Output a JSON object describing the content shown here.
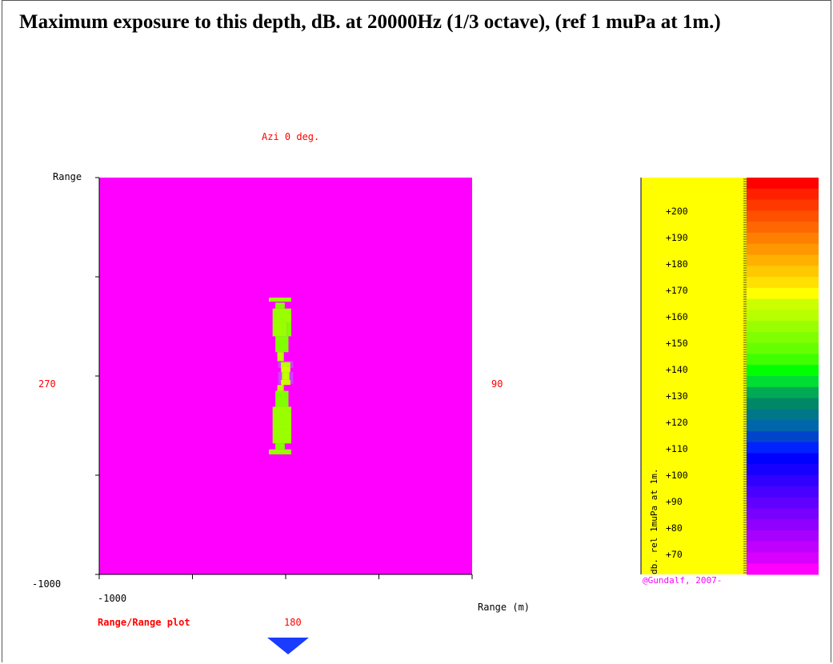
{
  "title": "Maximum exposure to this depth, dB. at 20000Hz (1/3 octave), (ref 1 muPa at 1m.)",
  "azimuth_label": "Azi 0 deg.",
  "bearing_labels": {
    "left": "270",
    "right": "90",
    "bottom": "180"
  },
  "plot_label": "Range/Range plot",
  "colors": {
    "background_level": "#ff00ff",
    "scale_panel": "#ffff00",
    "pointer": "#1a3cff"
  },
  "chart_data": {
    "type": "heatmap",
    "xlabel": "Range (m)",
    "ylabel": "Range",
    "x_tick_labels": [
      "-1000"
    ],
    "y_tick_labels": [
      "-1000"
    ],
    "background_value_db": 65,
    "cells": [
      {
        "x": [
          -90,
          30
        ],
        "y": [
          -375,
          -395
        ],
        "value": 152
      },
      {
        "x": [
          -55,
          -5
        ],
        "y": [
          -340,
          -370
        ],
        "value": 150
      },
      {
        "x": [
          -70,
          30
        ],
        "y": [
          -270,
          -340
        ],
        "value": 152
      },
      {
        "x": [
          -70,
          5
        ],
        "y": [
          -200,
          -270
        ],
        "value": 153
      },
      {
        "x": [
          5,
          30
        ],
        "y": [
          -200,
          -270
        ],
        "value": 148
      },
      {
        "x": [
          -55,
          15
        ],
        "y": [
          -120,
          -200
        ],
        "value": 150
      },
      {
        "x": [
          -45,
          -10
        ],
        "y": [
          -75,
          -120
        ],
        "value": 156
      },
      {
        "x": [
          -40,
          40
        ],
        "y": [
          -40,
          -75
        ],
        "value": 60
      },
      {
        "x": [
          -25,
          25
        ],
        "y": [
          -45,
          -70
        ],
        "value": 158
      },
      {
        "x": [
          -25,
          25
        ],
        "y": [
          -20,
          -45
        ],
        "value": 161
      },
      {
        "x": [
          -10,
          0
        ],
        "y": [
          -55,
          -20
        ],
        "value": 164
      },
      {
        "x": [
          -40,
          40
        ],
        "y": [
          -20,
          20
        ],
        "value": 60
      },
      {
        "x": [
          -20,
          20
        ],
        "y": [
          -20,
          20
        ],
        "value": 160
      },
      {
        "x": [
          -10,
          10
        ],
        "y": [
          -15,
          15
        ],
        "value": 163
      },
      {
        "x": [
          -40,
          40
        ],
        "y": [
          20,
          40
        ],
        "value": 60
      },
      {
        "x": [
          -25,
          25
        ],
        "y": [
          20,
          45
        ],
        "value": 161
      },
      {
        "x": [
          -45,
          -10
        ],
        "y": [
          45,
          75
        ],
        "value": 156
      },
      {
        "x": [
          -55,
          15
        ],
        "y": [
          75,
          155
        ],
        "value": 150
      },
      {
        "x": [
          -70,
          30
        ],
        "y": [
          155,
          270
        ],
        "value": 152
      },
      {
        "x": [
          -60,
          10
        ],
        "y": [
          200,
          250
        ],
        "value": 154
      },
      {
        "x": [
          -70,
          30
        ],
        "y": [
          270,
          340
        ],
        "value": 152
      },
      {
        "x": [
          -55,
          -5
        ],
        "y": [
          340,
          370
        ],
        "value": 150
      },
      {
        "x": [
          -90,
          30
        ],
        "y": [
          370,
          395
        ],
        "value": 152
      }
    ]
  },
  "color_scale": {
    "label": "db. rel 1muPa at 1m.",
    "ticks": [
      "+200",
      "+190",
      "+180",
      "+170",
      "+160",
      "+150",
      "+140",
      "+130",
      "+120",
      "+110",
      "+100",
      "+90",
      "+80",
      "+70"
    ],
    "colors": [
      "#ff0000",
      "#ff2000",
      "#ff3800",
      "#ff5000",
      "#ff6800",
      "#ff8000",
      "#ff9800",
      "#ffb000",
      "#ffc800",
      "#ffe000",
      "#ffff00",
      "#ccff00",
      "#b8ff00",
      "#99ff00",
      "#80ff00",
      "#66ff00",
      "#40ff00",
      "#00ff00",
      "#00dd33",
      "#00aa55",
      "#008866",
      "#007788",
      "#0066aa",
      "#0044cc",
      "#0022ff",
      "#0000ff",
      "#1800ff",
      "#3000ff",
      "#4800ff",
      "#6000ff",
      "#7800ff",
      "#9000ff",
      "#a800ff",
      "#c000ff",
      "#d800ff",
      "#ff00ff"
    ],
    "credit": "@Gundalf, 2007-"
  }
}
